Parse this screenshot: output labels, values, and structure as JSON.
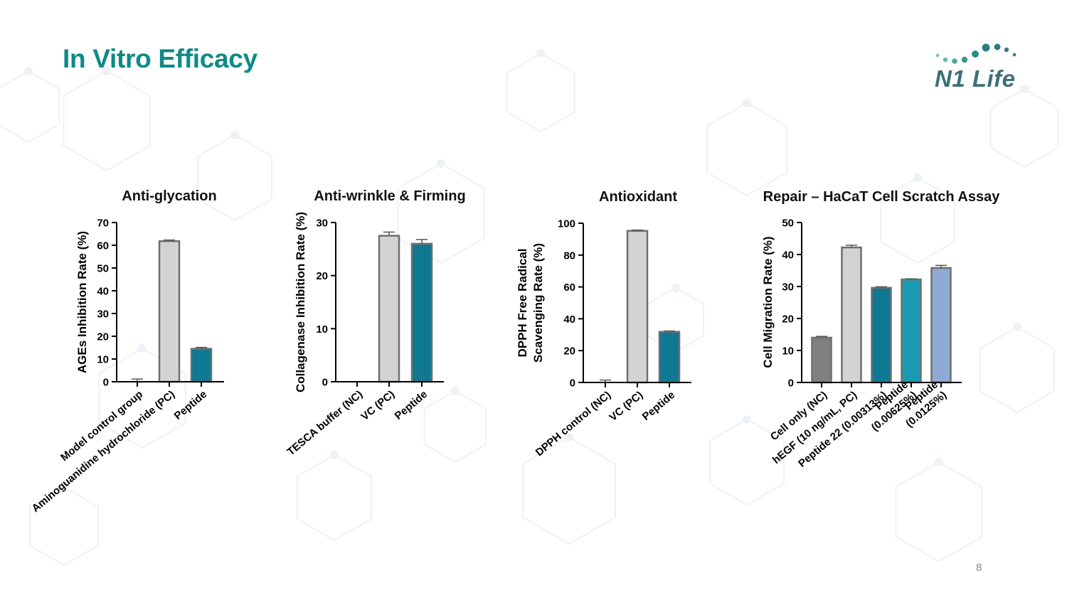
{
  "slide": {
    "title": "In Vitro Efficacy",
    "page_number": "8",
    "logo_text": "N1 Life",
    "accent_color": "#0e8a86"
  },
  "chart_data": [
    {
      "type": "bar",
      "title": "Anti-glycation",
      "ylabel": "AGEs Inhibition Rate (%)",
      "xlabel": "",
      "ylim": [
        0,
        70
      ],
      "yticks": [
        0,
        10,
        20,
        30,
        40,
        50,
        60,
        70
      ],
      "categories": [
        "Model control group",
        "Aminoguanidine hydrochloride (PC)",
        "Peptide"
      ],
      "values": [
        0,
        61.8,
        14.5
      ],
      "errors": [
        1.2,
        0.5,
        0.6
      ],
      "colors": [
        "#d3d3d3",
        "#d3d3d3",
        "#0f7893"
      ],
      "grid": false
    },
    {
      "type": "bar",
      "title": "Anti-wrinkle & Firming",
      "ylabel": "Collagenase Inhibition Rate (%)",
      "xlabel": "",
      "ylim": [
        0,
        30
      ],
      "yticks": [
        0,
        10,
        20,
        30
      ],
      "categories": [
        "TESCA buffer (NC)",
        "VC (PC)",
        "Peptide"
      ],
      "values": [
        0,
        27.5,
        26.0
      ],
      "errors": [
        0,
        0.7,
        0.8
      ],
      "colors": [
        "#d3d3d3",
        "#d3d3d3",
        "#0f7893"
      ],
      "grid": false
    },
    {
      "type": "bar",
      "title": "Antioxidant",
      "ylabel": "DPPH Free Radical Scavenging Rate (%)",
      "ylabel_lines": [
        "DPPH Free Radical",
        "Scavenging Rate (%)"
      ],
      "xlabel": "",
      "ylim": [
        0,
        100
      ],
      "yticks": [
        0,
        20,
        40,
        60,
        80,
        100
      ],
      "categories": [
        "DPPH control (NC)",
        "VC (PC)",
        "Peptide"
      ],
      "values": [
        0,
        95.2,
        31.8
      ],
      "errors": [
        1.5,
        0.5,
        0.5
      ],
      "colors": [
        "#d3d3d3",
        "#d3d3d3",
        "#0f7893"
      ],
      "grid": false
    },
    {
      "type": "bar",
      "title": "Repair – HaCaT Cell Scratch Assay",
      "ylabel": "Cell Migration Rate (%)",
      "xlabel": "",
      "ylim": [
        0,
        50
      ],
      "yticks": [
        0,
        10,
        20,
        30,
        40,
        50
      ],
      "categories": [
        "Cell only (NC)",
        "hEGF (10 ng/mL, PC)",
        "Peptide 22 (0.00313%)",
        "Peptide (0.00625%)",
        "Peptide (0.0125%)"
      ],
      "category_lines": [
        [
          "Cell only (NC)"
        ],
        [
          "hEGF (10 ng/mL, PC)"
        ],
        [
          "Peptide 22 (0.00313%)"
        ],
        [
          "Peptide",
          "(0.00625%)"
        ],
        [
          "Peptide",
          "(0.0125%)"
        ]
      ],
      "values": [
        14.0,
        42.2,
        29.6,
        32.2,
        35.8
      ],
      "errors": [
        0.4,
        0.7,
        0.3,
        0.2,
        0.8
      ],
      "colors": [
        "#808080",
        "#d3d3d3",
        "#0f7893",
        "#1a9ab3",
        "#8ea9d3"
      ],
      "grid": false
    }
  ]
}
